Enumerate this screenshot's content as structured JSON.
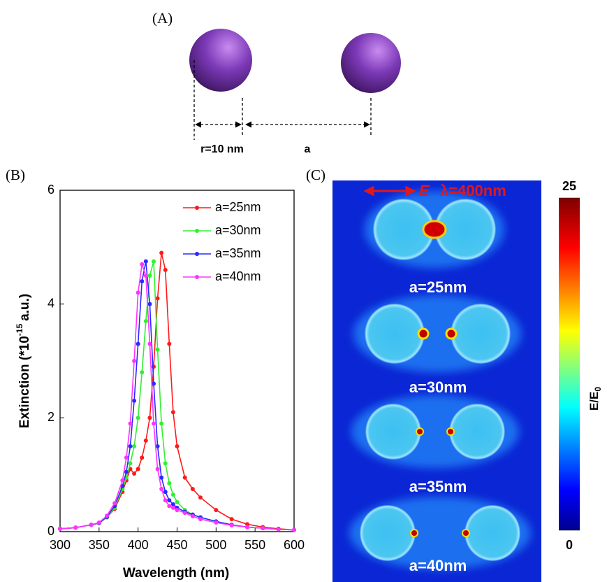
{
  "panel_a": {
    "label": "(A)",
    "radius_label": "r=10 nm",
    "gap_label": "a"
  },
  "chart_data": {
    "type": "line",
    "panel_label": "(B)",
    "x_label": "Wavelength (nm)",
    "y_label": "Extinction  (*10",
    "y_label_sup": "-15",
    "y_label_unit": "a.u.)",
    "x": [
      300,
      320,
      340,
      350,
      360,
      370,
      380,
      385,
      390,
      395,
      400,
      405,
      410,
      415,
      420,
      425,
      430,
      435,
      440,
      445,
      450,
      460,
      470,
      480,
      500,
      520,
      540,
      560,
      580,
      600
    ],
    "series": [
      {
        "name": "a=25nm",
        "color": "#ff1a1a",
        "values": [
          0.05,
          0.07,
          0.12,
          0.15,
          0.25,
          0.4,
          0.7,
          0.9,
          1.1,
          1.02,
          1.1,
          1.3,
          1.6,
          2.0,
          2.9,
          4.1,
          4.9,
          4.6,
          3.3,
          2.1,
          1.5,
          0.95,
          0.75,
          0.6,
          0.38,
          0.22,
          0.13,
          0.08,
          0.05,
          0.03
        ]
      },
      {
        "name": "a=30nm",
        "color": "#33ee33",
        "values": [
          0.05,
          0.07,
          0.12,
          0.15,
          0.25,
          0.42,
          0.75,
          0.95,
          1.2,
          1.5,
          2.0,
          2.8,
          3.7,
          4.5,
          4.75,
          3.2,
          1.9,
          1.2,
          0.85,
          0.65,
          0.52,
          0.38,
          0.3,
          0.25,
          0.18,
          0.12,
          0.08,
          0.06,
          0.04,
          0.03
        ]
      },
      {
        "name": "a=35nm",
        "color": "#2a2aff",
        "values": [
          0.05,
          0.07,
          0.12,
          0.15,
          0.26,
          0.45,
          0.8,
          1.05,
          1.5,
          2.3,
          3.3,
          4.4,
          4.75,
          4.0,
          2.6,
          1.5,
          0.95,
          0.7,
          0.55,
          0.48,
          0.42,
          0.35,
          0.3,
          0.25,
          0.18,
          0.12,
          0.08,
          0.06,
          0.04,
          0.03
        ]
      },
      {
        "name": "a=40nm",
        "color": "#ff33ff",
        "values": [
          0.05,
          0.07,
          0.12,
          0.16,
          0.28,
          0.5,
          0.9,
          1.3,
          1.9,
          3.0,
          4.2,
          4.7,
          4.5,
          3.3,
          1.9,
          1.1,
          0.75,
          0.55,
          0.45,
          0.42,
          0.38,
          0.33,
          0.27,
          0.22,
          0.16,
          0.11,
          0.08,
          0.06,
          0.04,
          0.03
        ]
      }
    ],
    "xlim": [
      300,
      600
    ],
    "ylim": [
      0,
      6
    ],
    "xticks": [
      300,
      350,
      400,
      450,
      500,
      550,
      600
    ],
    "yticks": [
      0,
      2,
      4,
      6
    ],
    "legend": "upper right"
  },
  "panel_c": {
    "label": "(C)",
    "polarization": "E",
    "wavelength": "λ=400nm",
    "field_labels": [
      "a=25nm",
      "a=30nm",
      "a=35nm",
      "a=40nm"
    ],
    "colorbar": {
      "range": [
        0,
        25
      ],
      "ticks": [
        0,
        25
      ],
      "label": "E/E",
      "label_sub": "0"
    }
  }
}
